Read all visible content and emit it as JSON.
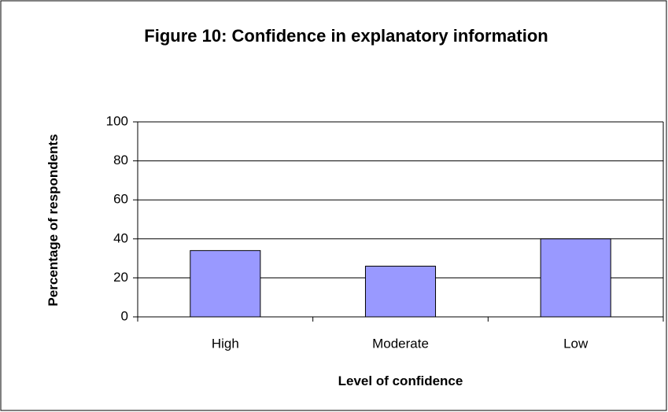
{
  "chart_data": {
    "type": "bar",
    "title": "Figure 10: Confidence in explanatory information",
    "x_label": "Level of confidence",
    "y_label": "Percentage of respondents",
    "categories": [
      "High",
      "Moderate",
      "Low"
    ],
    "values": [
      34,
      26,
      40
    ],
    "color": "#9999ff",
    "ylim": [
      0,
      100
    ],
    "yticks": [
      0,
      20,
      40,
      60,
      80,
      100
    ],
    "grid": true
  }
}
